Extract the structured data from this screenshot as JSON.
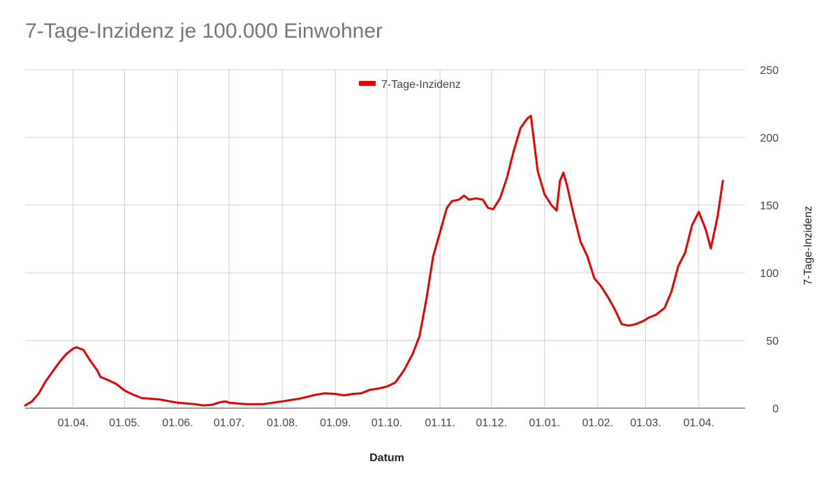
{
  "chart_data": {
    "type": "line",
    "title": "7-Tage-Inzidenz je 100.000 Einwohner",
    "xlabel": "Datum",
    "ylabel": "7-Tage-Inzidenz",
    "ylim": [
      0,
      250
    ],
    "yticks": [
      0,
      50,
      100,
      150,
      200,
      250
    ],
    "xlim": [
      "2020-03-04",
      "2021-04-28"
    ],
    "x_ticks": [
      {
        "date": "2020-04-01",
        "label": "01.04."
      },
      {
        "date": "2020-05-01",
        "label": "01.05."
      },
      {
        "date": "2020-06-01",
        "label": "01.06."
      },
      {
        "date": "2020-07-01",
        "label": "01.07."
      },
      {
        "date": "2020-08-01",
        "label": "01.08."
      },
      {
        "date": "2020-09-01",
        "label": "01.09."
      },
      {
        "date": "2020-10-01",
        "label": "01.10."
      },
      {
        "date": "2020-11-01",
        "label": "01.11."
      },
      {
        "date": "2020-12-01",
        "label": "01.12."
      },
      {
        "date": "2021-01-01",
        "label": "01.01."
      },
      {
        "date": "2021-02-01",
        "label": "01.02."
      },
      {
        "date": "2021-03-01",
        "label": "01.03."
      },
      {
        "date": "2021-04-01",
        "label": "01.04."
      }
    ],
    "grid": true,
    "y_axis_side": "right",
    "legend_position": "top-center",
    "series": [
      {
        "name": "7-Tage-Inzidenz",
        "color": "#e60000",
        "points": [
          [
            "2020-03-04",
            2
          ],
          [
            "2020-03-08",
            5
          ],
          [
            "2020-03-12",
            11
          ],
          [
            "2020-03-16",
            20
          ],
          [
            "2020-03-20",
            27
          ],
          [
            "2020-03-24",
            34
          ],
          [
            "2020-03-28",
            40
          ],
          [
            "2020-04-01",
            44
          ],
          [
            "2020-04-03",
            45
          ],
          [
            "2020-04-07",
            43
          ],
          [
            "2020-04-11",
            35
          ],
          [
            "2020-04-15",
            28
          ],
          [
            "2020-04-17",
            23
          ],
          [
            "2020-04-21",
            21
          ],
          [
            "2020-04-26",
            18
          ],
          [
            "2020-05-01",
            13
          ],
          [
            "2020-05-06",
            10
          ],
          [
            "2020-05-11",
            7.5
          ],
          [
            "2020-05-21",
            6.5
          ],
          [
            "2020-06-01",
            4
          ],
          [
            "2020-06-11",
            3
          ],
          [
            "2020-06-16",
            2
          ],
          [
            "2020-06-21",
            2.5
          ],
          [
            "2020-06-26",
            4.5
          ],
          [
            "2020-06-29",
            5
          ],
          [
            "2020-07-01",
            4
          ],
          [
            "2020-07-11",
            3
          ],
          [
            "2020-07-21",
            3
          ],
          [
            "2020-08-01",
            5
          ],
          [
            "2020-08-11",
            7
          ],
          [
            "2020-08-21",
            10
          ],
          [
            "2020-08-26",
            11
          ],
          [
            "2020-09-01",
            10.5
          ],
          [
            "2020-09-06",
            9.5
          ],
          [
            "2020-09-11",
            10.5
          ],
          [
            "2020-09-16",
            11
          ],
          [
            "2020-09-21",
            13.5
          ],
          [
            "2020-09-26",
            14.5
          ],
          [
            "2020-10-01",
            16
          ],
          [
            "2020-10-06",
            19
          ],
          [
            "2020-10-11",
            28
          ],
          [
            "2020-10-16",
            40
          ],
          [
            "2020-10-20",
            53
          ],
          [
            "2020-10-24",
            80
          ],
          [
            "2020-10-28",
            112
          ],
          [
            "2020-11-01",
            130
          ],
          [
            "2020-11-05",
            148
          ],
          [
            "2020-11-08",
            153
          ],
          [
            "2020-11-12",
            154
          ],
          [
            "2020-11-15",
            157
          ],
          [
            "2020-11-18",
            154
          ],
          [
            "2020-11-22",
            155
          ],
          [
            "2020-11-26",
            154
          ],
          [
            "2020-11-29",
            148
          ],
          [
            "2020-12-02",
            147
          ],
          [
            "2020-12-06",
            155
          ],
          [
            "2020-12-10",
            170
          ],
          [
            "2020-12-14",
            190
          ],
          [
            "2020-12-18",
            207
          ],
          [
            "2020-12-22",
            214
          ],
          [
            "2020-12-24",
            216
          ],
          [
            "2020-12-28",
            175
          ],
          [
            "2021-01-01",
            158
          ],
          [
            "2021-01-05",
            150
          ],
          [
            "2021-01-08",
            146
          ],
          [
            "2021-01-10",
            168
          ],
          [
            "2021-01-12",
            174
          ],
          [
            "2021-01-14",
            165
          ],
          [
            "2021-01-18",
            143
          ],
          [
            "2021-01-22",
            123
          ],
          [
            "2021-01-26",
            112
          ],
          [
            "2021-01-30",
            96
          ],
          [
            "2021-02-03",
            90
          ],
          [
            "2021-02-07",
            82
          ],
          [
            "2021-02-11",
            73
          ],
          [
            "2021-02-15",
            62
          ],
          [
            "2021-02-19",
            61
          ],
          [
            "2021-02-23",
            62
          ],
          [
            "2021-02-27",
            64
          ],
          [
            "2021-03-03",
            67
          ],
          [
            "2021-03-07",
            69
          ],
          [
            "2021-03-12",
            74
          ],
          [
            "2021-03-16",
            86
          ],
          [
            "2021-03-20",
            105
          ],
          [
            "2021-03-24",
            115
          ],
          [
            "2021-03-28",
            135
          ],
          [
            "2021-04-01",
            145
          ],
          [
            "2021-04-05",
            132
          ],
          [
            "2021-04-08",
            118
          ],
          [
            "2021-04-12",
            142
          ],
          [
            "2021-04-15",
            168
          ]
        ]
      }
    ]
  }
}
